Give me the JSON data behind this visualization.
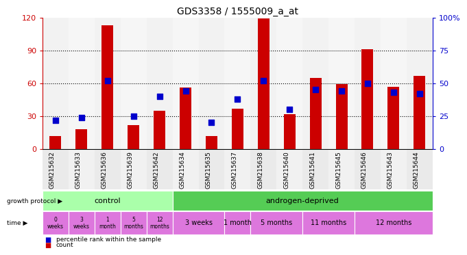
{
  "title": "GDS3358 / 1555009_a_at",
  "samples": [
    "GSM215632",
    "GSM215633",
    "GSM215636",
    "GSM215639",
    "GSM215642",
    "GSM215634",
    "GSM215635",
    "GSM215637",
    "GSM215638",
    "GSM215640",
    "GSM215641",
    "GSM215645",
    "GSM215646",
    "GSM215643",
    "GSM215644"
  ],
  "count_values": [
    12,
    18,
    113,
    22,
    35,
    56,
    12,
    37,
    119,
    32,
    65,
    59,
    91,
    57,
    67
  ],
  "percentile_values": [
    22,
    24,
    52,
    25,
    40,
    44,
    20,
    38,
    52,
    30,
    45,
    44,
    50,
    43,
    42
  ],
  "ylim_left": [
    0,
    120
  ],
  "ylim_right": [
    0,
    100
  ],
  "yticks_left": [
    0,
    30,
    60,
    90,
    120
  ],
  "yticks_right": [
    0,
    25,
    50,
    75,
    100
  ],
  "ytick_labels_left": [
    "0",
    "30",
    "60",
    "90",
    "120"
  ],
  "ytick_labels_right": [
    "0",
    "25",
    "50",
    "75",
    "100%"
  ],
  "bar_color": "#cc0000",
  "dot_color": "#0000cc",
  "left_axis_color": "#cc0000",
  "right_axis_color": "#0000cc",
  "control_label": "control",
  "androgen_label": "androgen-deprived",
  "control_bg": "#aaffaa",
  "androgen_bg": "#55cc55",
  "time_bg": "#dd77dd",
  "time_control": [
    "0\nweeks",
    "3\nweeks",
    "1\nmonth",
    "5\nmonths",
    "12\nmonths"
  ],
  "time_androgen": [
    "3 weeks",
    "1 month",
    "5 months",
    "11 months",
    "12 months"
  ],
  "time_androgen_groups": [
    [
      5,
      6
    ],
    [
      7
    ],
    [
      8,
      9
    ],
    [
      10,
      11
    ],
    [
      12,
      13,
      14
    ]
  ],
  "growth_protocol_label": "growth protocol",
  "time_label": "time",
  "legend_count": "count",
  "legend_pct": "percentile rank within the sample"
}
